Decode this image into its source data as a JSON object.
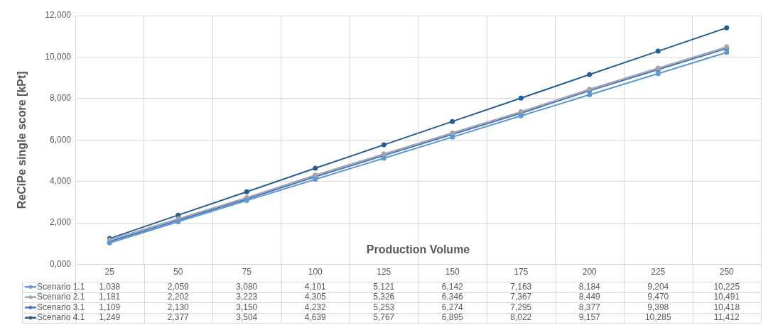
{
  "chart_data": {
    "type": "line",
    "xlabel": "Production Volume",
    "ylabel": "ReCiPe single score [kPt]",
    "categories": [
      "25",
      "50",
      "75",
      "100",
      "125",
      "150",
      "175",
      "200",
      "225",
      "250"
    ],
    "ylim": [
      0,
      12000
    ],
    "yticks": [
      {
        "value": 0,
        "label": "0,000"
      },
      {
        "value": 2000,
        "label": "2,000"
      },
      {
        "value": 4000,
        "label": "4,000"
      },
      {
        "value": 6000,
        "label": "6,000"
      },
      {
        "value": 8000,
        "label": "8,000"
      },
      {
        "value": 10000,
        "label": "10,000"
      },
      {
        "value": 12000,
        "label": "12,000"
      }
    ],
    "grid": true,
    "legend": "bottom left",
    "marker": "circle",
    "line_style": "solid",
    "series": [
      {
        "name": "Scenario 1.1",
        "color": "#5b9bd5",
        "values": [
          1038,
          2059,
          3080,
          4101,
          5121,
          6142,
          7163,
          8184,
          9204,
          10225
        ],
        "value_labels": [
          "1,038",
          "2,059",
          "3,080",
          "4,101",
          "5,121",
          "6,142",
          "7,163",
          "8,184",
          "9,204",
          "10,225"
        ]
      },
      {
        "name": "Scenario 2.1",
        "color": "#a5a5a5",
        "values": [
          1181,
          2202,
          3223,
          4305,
          5326,
          6346,
          7367,
          8449,
          9470,
          10491
        ],
        "value_labels": [
          "1,181",
          "2,202",
          "3,223",
          "4,305",
          "5,326",
          "6,346",
          "7,367",
          "8,449",
          "9,470",
          "10,491"
        ]
      },
      {
        "name": "Scenario 3.1",
        "color": "#4472c4",
        "values": [
          1109,
          2130,
          3150,
          4232,
          5253,
          6274,
          7295,
          8377,
          9398,
          10418
        ],
        "value_labels": [
          "1,109",
          "2,130",
          "3,150",
          "4,232",
          "5,253",
          "6,274",
          "7,295",
          "8,377",
          "9,398",
          "10,418"
        ]
      },
      {
        "name": "Scenario 4.1",
        "color": "#255e91",
        "values": [
          1249,
          2377,
          3504,
          4639,
          5767,
          6895,
          8022,
          9157,
          10285,
          11412
        ],
        "value_labels": [
          "1,249",
          "2,377",
          "3,504",
          "4,639",
          "5,767",
          "6,895",
          "8,022",
          "9,157",
          "10,285",
          "11,412"
        ]
      }
    ]
  }
}
